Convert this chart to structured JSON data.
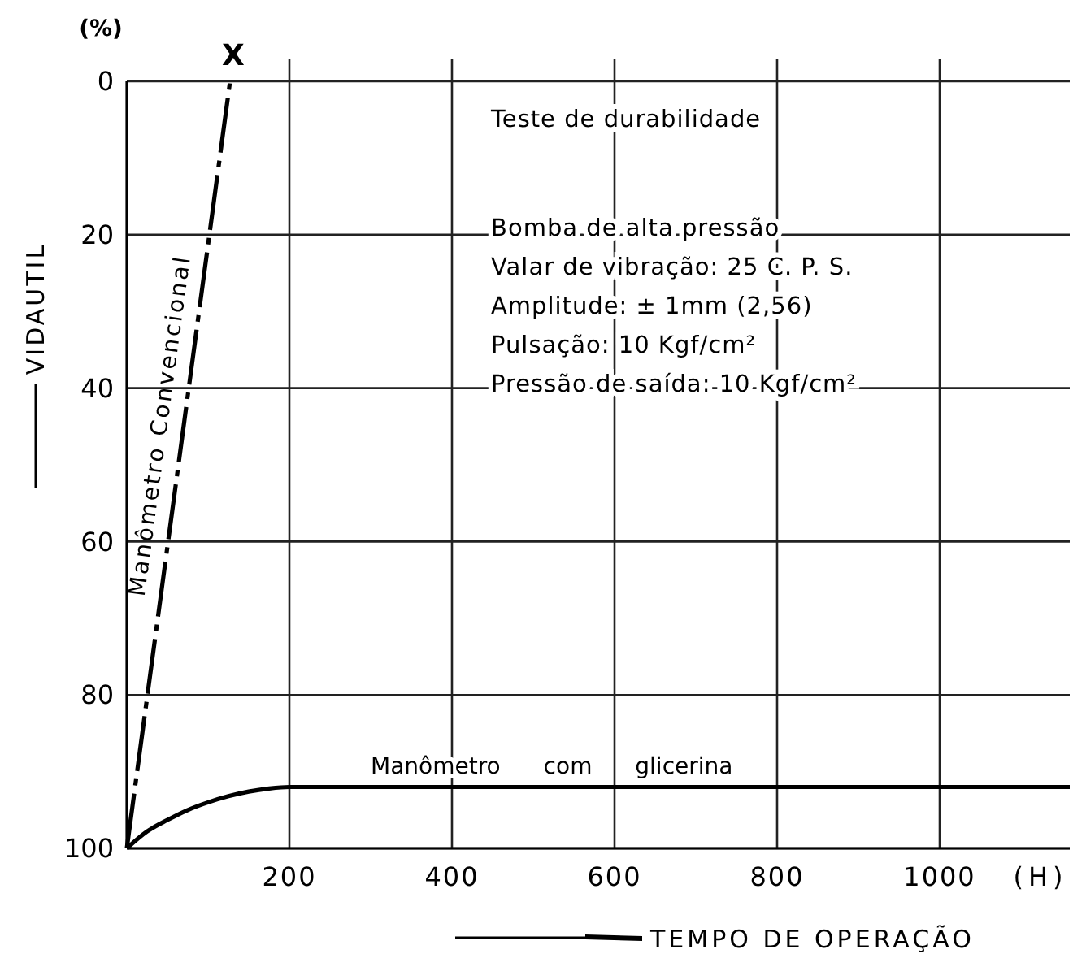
{
  "chart_data": {
    "type": "line",
    "xlabel": "TEMPO DE OPERAÇÃO",
    "ylabel": "VIDAUTIL",
    "xlim": [
      0,
      1160
    ],
    "ylim": [
      100,
      0
    ],
    "xticks": [
      200,
      400,
      600,
      800,
      1000
    ],
    "yticks": [
      0,
      20,
      40,
      60,
      80,
      100
    ],
    "grid": true,
    "series": [
      {
        "name": "Manômetro Convencional",
        "color": "#000000",
        "line_style": "dashed",
        "x": [
          0,
          127
        ],
        "values": [
          100,
          0
        ]
      },
      {
        "name": "Manômetro com glicerina",
        "color": "#000000",
        "line_style": "solid",
        "x": [
          0,
          25,
          50,
          75,
          100,
          125,
          150,
          175,
          200,
          400,
          600,
          800,
          1000,
          1160
        ],
        "values": [
          100,
          97.8,
          96.3,
          95,
          94,
          93.2,
          92.6,
          92.2,
          92,
          92,
          92,
          92,
          92,
          92
        ]
      }
    ],
    "annotations": [
      "(%)",
      "(H)",
      {
        "text": "X",
        "x": 127,
        "y": 0
      },
      "Teste de durabilidade",
      "Bomba de alta pressão",
      "Valar de vibração: 25 C. P. S.",
      "Amplitude: ± 1mm (2,56)",
      "Pulsação: 10 Kgf/cm²",
      "Pressão de saída: 10 Kgf/cm²"
    ]
  }
}
